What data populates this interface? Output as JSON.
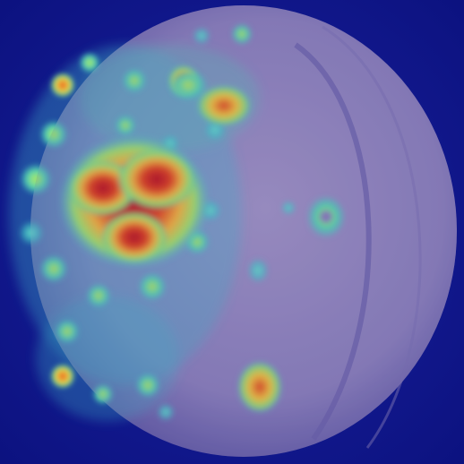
{
  "image": {
    "subject": "heatmap-overlay-on-spherical-object",
    "colors": {
      "background": "#10168a",
      "object_base": "#8a7fb8",
      "object_shadow": "#6e63a6",
      "object_highlight": "#a597c6",
      "heat_low": "#3fc9c9",
      "heat_mid": "#9ee26a",
      "heat_high": "#f2c43a",
      "heat_peak": "#d9231c"
    }
  }
}
